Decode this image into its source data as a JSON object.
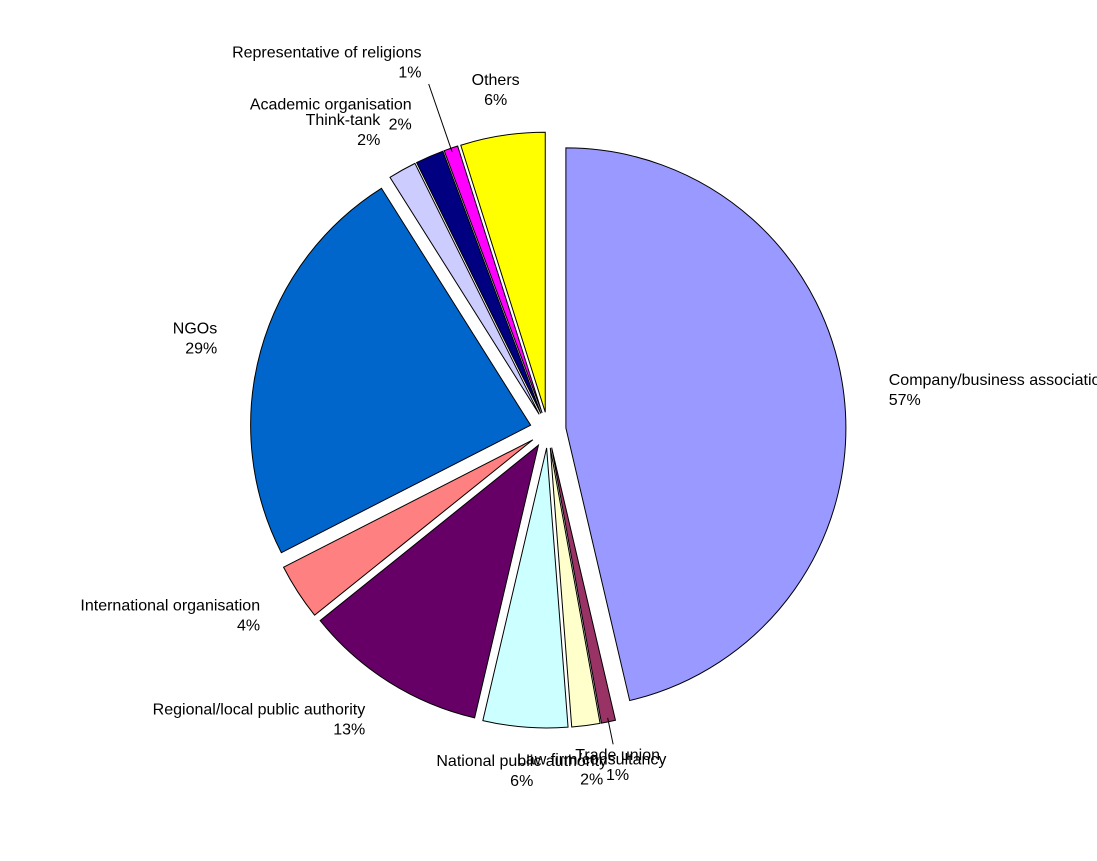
{
  "chart_data": {
    "type": "pie",
    "categories": [
      "Company/business association",
      "Trade union",
      "Law firm/consultancy",
      "National public authority",
      "Regional/local public authority",
      "International organisation",
      "NGOs",
      "Think-tank",
      "Academic organisation",
      "Representative of religions",
      "Others"
    ],
    "values": [
      57,
      1,
      2,
      6,
      13,
      4,
      29,
      2,
      2,
      1,
      6
    ],
    "value_labels": [
      "57%",
      "1%",
      "2%",
      "6%",
      "13%",
      "4%",
      "29%",
      "2%",
      "2%",
      "1%",
      "6%"
    ],
    "colors": [
      "#9999ff",
      "#993366",
      "#ffffcc",
      "#ccffff",
      "#660066",
      "#ff8080",
      "#0066cc",
      "#ccccff",
      "#000080",
      "#ff00ff",
      "#ffff00"
    ]
  }
}
